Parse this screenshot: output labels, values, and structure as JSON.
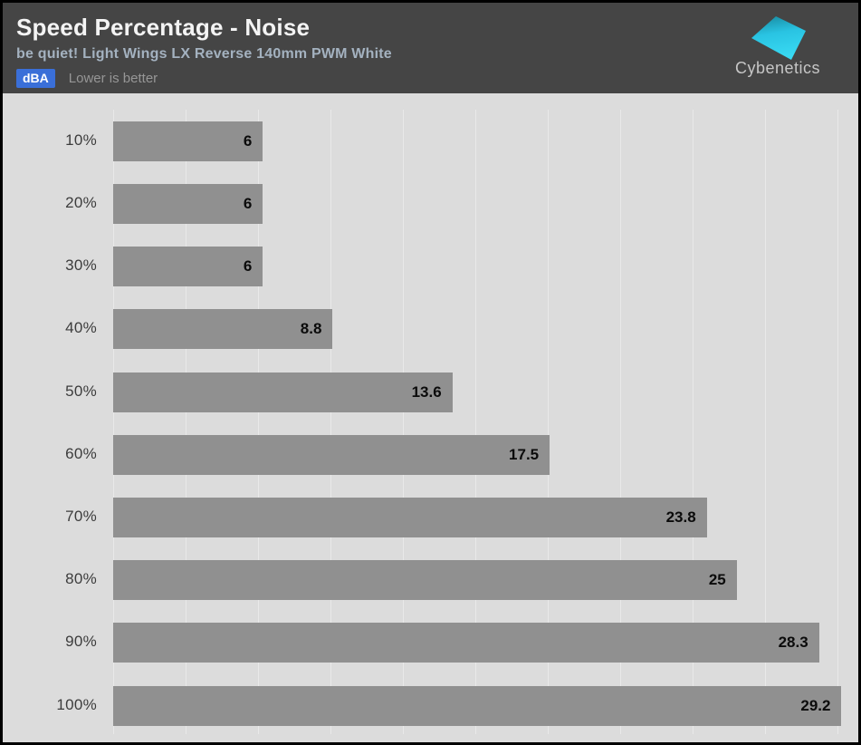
{
  "header": {
    "title": "Speed Percentage - Noise",
    "subtitle": "be quiet! Light Wings LX Reverse 140mm PWM White",
    "unit_badge": "dBA",
    "note": "Lower is better",
    "logo_text": "Cybenetics"
  },
  "colors": {
    "header_bg": "#454545",
    "title": "#f4f4f4",
    "subtitle": "#a4b2c0",
    "badge_bg": "#3a6fd8",
    "badge_text": "#ffffff",
    "note_text": "#969696",
    "chart_bg": "#dcdcdc",
    "bar": "#909090",
    "gridline": "#e9e9e9",
    "category_label": "#3c3c3c",
    "value_label": "#0b0b0b",
    "logo_cyan_top": "#17879d",
    "logo_cyan_bottom": "#38d9f2",
    "logo_text": "#c6c6c6"
  },
  "chart_data": {
    "type": "bar",
    "orientation": "horizontal",
    "title": "Speed Percentage - Noise",
    "subtitle": "be quiet! Light Wings LX Reverse 140mm PWM White",
    "unit": "dBA",
    "note": "Lower is better",
    "categories": [
      "10%",
      "20%",
      "30%",
      "40%",
      "50%",
      "60%",
      "70%",
      "80%",
      "90%",
      "100%"
    ],
    "values": [
      6,
      6,
      6,
      8.8,
      13.6,
      17.5,
      23.8,
      25,
      28.3,
      29.2
    ],
    "xlabel": "dBA",
    "ylabel": "Speed Percentage",
    "xlim": [
      0,
      29.2
    ],
    "grid": true,
    "legend": false
  }
}
